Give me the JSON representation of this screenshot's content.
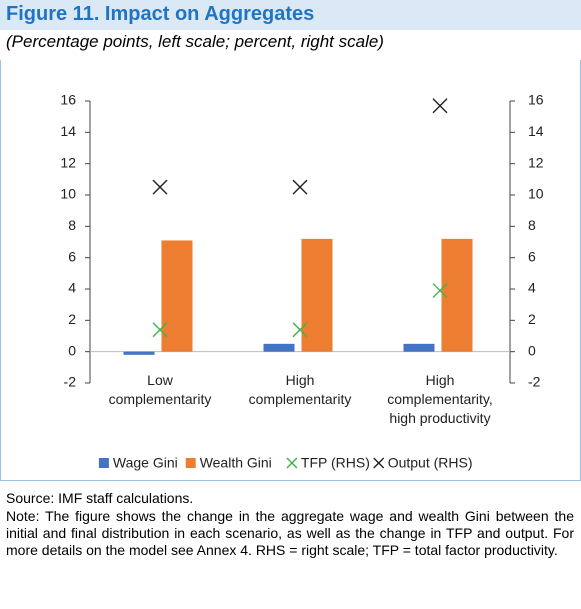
{
  "chart_data": {
    "type": "bar",
    "title": "Figure 11. Impact on Aggregates",
    "subtitle": "(Percentage points, left scale; percent, right scale)",
    "categories": [
      "Low\ncomplementarity",
      "High\ncomplementarity",
      "High\ncomplementarity,\nhigh productivity"
    ],
    "series": [
      {
        "name": "Wage Gini",
        "color": "#4472c4",
        "values": [
          -0.2,
          0.5,
          0.5
        ],
        "mark": "bar"
      },
      {
        "name": "Wealth Gini",
        "color": "#ed7d31",
        "values": [
          7.1,
          7.2,
          7.2
        ],
        "mark": "bar"
      },
      {
        "name": "TFP (RHS)",
        "color": "#3cb44b",
        "values": [
          1.4,
          1.4,
          3.9
        ],
        "mark": "x",
        "axis": "y2"
      },
      {
        "name": "Output (RHS)",
        "color": "#222222",
        "values": [
          10.5,
          10.5,
          15.7
        ],
        "mark": "x",
        "axis": "y2"
      }
    ],
    "ylim": [
      -2,
      16
    ],
    "yticks": [
      -2,
      0,
      2,
      4,
      6,
      8,
      10,
      12,
      14,
      16
    ],
    "y2lim": [
      -2,
      16
    ],
    "y2ticks": [
      -2,
      0,
      2,
      4,
      6,
      8,
      10,
      12,
      14,
      16
    ],
    "legend": "bottom",
    "source": "Source: IMF staff calculations.",
    "note": "Note: The figure shows the change in the aggregate wage and wealth Gini between the initial and final distribution in each scenario, as well as the change in TFP and output. For more details on the model see Annex 4. RHS = right scale; TFP = total factor productivity."
  }
}
